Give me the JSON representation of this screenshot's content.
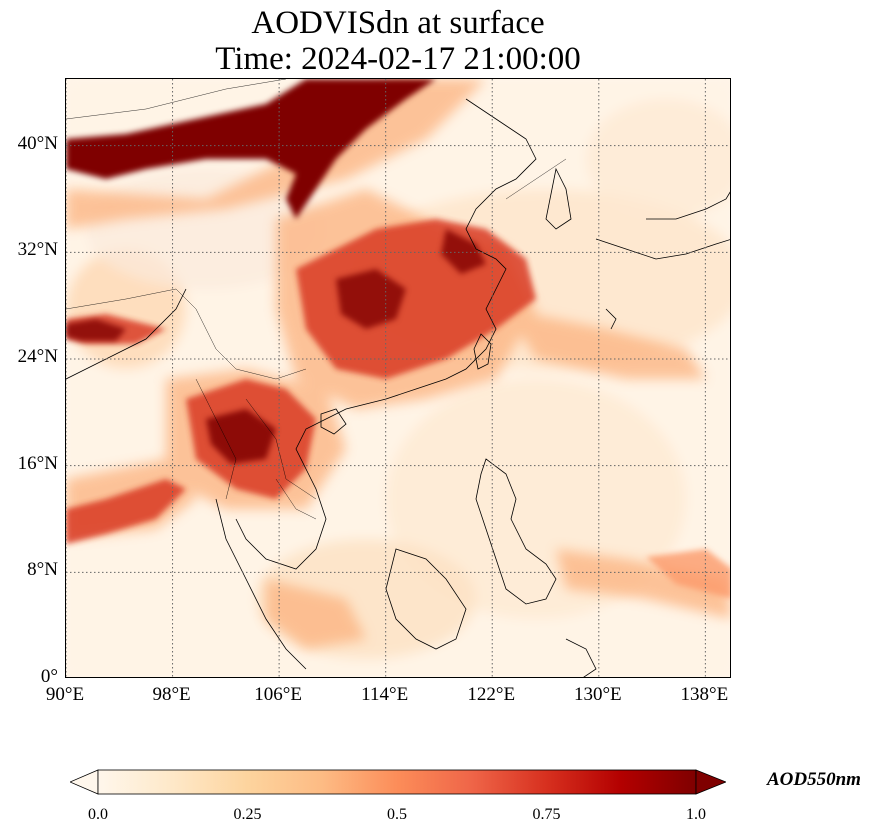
{
  "title": {
    "line1": "AODVISdn at surface",
    "line2": "Time: 2024-02-17 21:00:00"
  },
  "map": {
    "lon_range": [
      90,
      140
    ],
    "lat_range": [
      0,
      45
    ],
    "grid_lines": true,
    "lat_ticks": [
      {
        "value": 40,
        "label": "40°N"
      },
      {
        "value": 32,
        "label": "32°N"
      },
      {
        "value": 24,
        "label": "24°N"
      },
      {
        "value": 16,
        "label": "16°N"
      },
      {
        "value": 8,
        "label": "8°N"
      },
      {
        "value": 0,
        "label": "0°"
      }
    ],
    "lon_ticks": [
      {
        "value": 90,
        "label": "90°E"
      },
      {
        "value": 98,
        "label": "98°E"
      },
      {
        "value": 106,
        "label": "106°E"
      },
      {
        "value": 114,
        "label": "114°E"
      },
      {
        "value": 122,
        "label": "122°E"
      },
      {
        "value": 130,
        "label": "130°E"
      },
      {
        "value": 138,
        "label": "138°E"
      }
    ]
  },
  "colorbar": {
    "label": "AOD550nm",
    "min": 0.0,
    "max": 1.0,
    "extend": "both",
    "colormap": "OrRd",
    "colors": [
      "#fff7ec",
      "#fee8c8",
      "#fdd49e",
      "#fdbb84",
      "#fc8d59",
      "#ef6548",
      "#d7301f",
      "#b30000",
      "#7f0000"
    ],
    "ticks": [
      {
        "value": 0.0,
        "label": "0.0"
      },
      {
        "value": 0.25,
        "label": "0.25"
      },
      {
        "value": 0.5,
        "label": "0.5"
      },
      {
        "value": 0.75,
        "label": "0.75"
      },
      {
        "value": 1.0,
        "label": "1.0"
      }
    ]
  }
}
